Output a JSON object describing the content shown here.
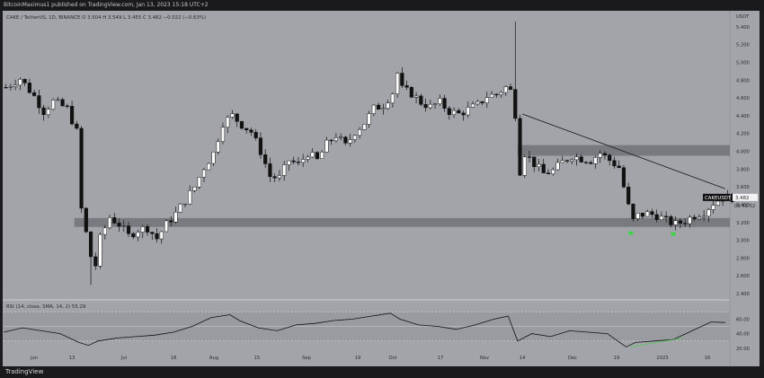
{
  "header": {
    "text": "BitcoinMaximus1 published on TradingView.com, Jan 13, 2023 15:18 UTC+2"
  },
  "footer": {
    "text": "TradingView"
  },
  "chart_data": {
    "type": "candlestick",
    "legend": "CAKE / TetherUS, 1D, BINANCE  O 3.504  H 3.549  L 3.455  C 3.482  −0.022 (−0.63%)",
    "currency": "USDT",
    "symbol": "CAKEUSDT",
    "last_price": "3.482",
    "countdown": "09:41:52",
    "y_ticks": [
      "5.400",
      "5.200",
      "5.000",
      "4.800",
      "4.600",
      "4.400",
      "4.200",
      "4.000",
      "3.800",
      "3.600",
      "3.400",
      "3.200",
      "3.000",
      "2.800",
      "2.600",
      "2.400"
    ],
    "x_ticks": [
      "Jun",
      "13",
      "Jul",
      "18",
      "Aug",
      "15",
      "Sep",
      "19",
      "Oct",
      "17",
      "Nov",
      "14",
      "Dec",
      "19",
      "2023",
      "16"
    ],
    "price_path": [
      [
        0,
        4.72
      ],
      [
        3,
        4.82
      ],
      [
        6,
        4.62
      ],
      [
        8,
        4.45
      ],
      [
        10,
        4.56
      ],
      [
        13,
        4.48
      ],
      [
        15,
        4.22
      ],
      [
        16,
        3.35
      ],
      [
        17,
        3.08
      ],
      [
        18,
        2.82
      ],
      [
        19,
        2.72
      ],
      [
        20,
        3.02
      ],
      [
        22,
        3.26
      ],
      [
        24,
        3.18
      ],
      [
        26,
        3.05
      ],
      [
        28,
        3.12
      ],
      [
        30,
        3.14
      ],
      [
        32,
        3.02
      ],
      [
        34,
        3.18
      ],
      [
        36,
        3.3
      ],
      [
        38,
        3.45
      ],
      [
        40,
        3.6
      ],
      [
        42,
        3.82
      ],
      [
        44,
        3.98
      ],
      [
        46,
        4.32
      ],
      [
        48,
        4.4
      ],
      [
        50,
        4.3
      ],
      [
        52,
        4.22
      ],
      [
        54,
        4.0
      ],
      [
        56,
        3.72
      ],
      [
        58,
        3.7
      ],
      [
        60,
        3.9
      ],
      [
        62,
        3.85
      ],
      [
        64,
        3.98
      ],
      [
        66,
        3.9
      ],
      [
        68,
        4.08
      ],
      [
        70,
        4.18
      ],
      [
        72,
        4.06
      ],
      [
        74,
        4.22
      ],
      [
        76,
        4.32
      ],
      [
        78,
        4.48
      ],
      [
        80,
        4.52
      ],
      [
        82,
        4.66
      ],
      [
        83,
        4.88
      ],
      [
        84,
        4.7
      ],
      [
        86,
        4.65
      ],
      [
        88,
        4.55
      ],
      [
        90,
        4.5
      ],
      [
        92,
        4.55
      ],
      [
        94,
        4.45
      ],
      [
        96,
        4.42
      ],
      [
        98,
        4.47
      ],
      [
        100,
        4.52
      ],
      [
        102,
        4.62
      ],
      [
        104,
        4.64
      ],
      [
        106,
        4.72
      ],
      [
        107,
        4.68
      ],
      [
        108,
        4.42
      ],
      [
        109,
        3.78
      ],
      [
        110,
        3.98
      ],
      [
        112,
        3.86
      ],
      [
        114,
        3.75
      ],
      [
        116,
        3.78
      ],
      [
        118,
        3.88
      ],
      [
        120,
        3.95
      ],
      [
        122,
        3.92
      ],
      [
        124,
        3.9
      ],
      [
        126,
        3.98
      ],
      [
        128,
        3.9
      ],
      [
        130,
        3.82
      ],
      [
        132,
        3.38
      ],
      [
        133,
        3.22
      ],
      [
        134,
        3.28
      ],
      [
        136,
        3.3
      ],
      [
        138,
        3.28
      ],
      [
        140,
        3.22
      ],
      [
        142,
        3.18
      ],
      [
        144,
        3.22
      ],
      [
        146,
        3.28
      ],
      [
        148,
        3.32
      ],
      [
        150,
        3.42
      ],
      [
        152,
        3.48
      ],
      [
        153,
        3.482
      ]
    ],
    "extremes": [
      {
        "x": 18,
        "price": 2.5,
        "kind": "wick_low"
      },
      {
        "x": 108,
        "price": 5.46,
        "kind": "wick_high"
      }
    ],
    "support_zone": {
      "low": 3.15,
      "high": 3.25
    },
    "resistance_zone": {
      "low": 3.95,
      "high": 4.07
    },
    "trendline": {
      "start": {
        "x": 110,
        "price": 4.42
      },
      "end": {
        "x": 153,
        "price": 3.58
      }
    },
    "green_markers": [
      {
        "x": 133,
        "price": 3.08
      },
      {
        "x": 142,
        "price": 3.07
      }
    ],
    "rsi": {
      "label": "RSI (14, close, SMA, 14, 2)",
      "value": "55.29",
      "y_ticks": [
        "60.00",
        "40.00",
        "20.00"
      ],
      "bands": [
        70,
        50,
        30
      ],
      "values": [
        [
          0,
          42
        ],
        [
          4,
          48
        ],
        [
          8,
          44
        ],
        [
          12,
          40
        ],
        [
          16,
          28
        ],
        [
          18,
          24
        ],
        [
          20,
          30
        ],
        [
          24,
          34
        ],
        [
          28,
          36
        ],
        [
          32,
          38
        ],
        [
          36,
          42
        ],
        [
          40,
          50
        ],
        [
          44,
          62
        ],
        [
          48,
          66
        ],
        [
          50,
          58
        ],
        [
          54,
          48
        ],
        [
          58,
          44
        ],
        [
          62,
          52
        ],
        [
          66,
          54
        ],
        [
          70,
          58
        ],
        [
          74,
          60
        ],
        [
          78,
          64
        ],
        [
          82,
          68
        ],
        [
          84,
          60
        ],
        [
          88,
          52
        ],
        [
          92,
          50
        ],
        [
          96,
          46
        ],
        [
          100,
          52
        ],
        [
          104,
          60
        ],
        [
          107,
          64
        ],
        [
          109,
          30
        ],
        [
          112,
          40
        ],
        [
          116,
          36
        ],
        [
          120,
          44
        ],
        [
          124,
          42
        ],
        [
          128,
          40
        ],
        [
          132,
          22
        ],
        [
          134,
          28
        ],
        [
          138,
          30
        ],
        [
          142,
          32
        ],
        [
          146,
          44
        ],
        [
          150,
          56
        ],
        [
          153,
          55.29
        ]
      ],
      "divergence_line": {
        "start": {
          "x": 133,
          "price": 22
        },
        "end": {
          "x": 144,
          "price": 34
        }
      }
    }
  }
}
